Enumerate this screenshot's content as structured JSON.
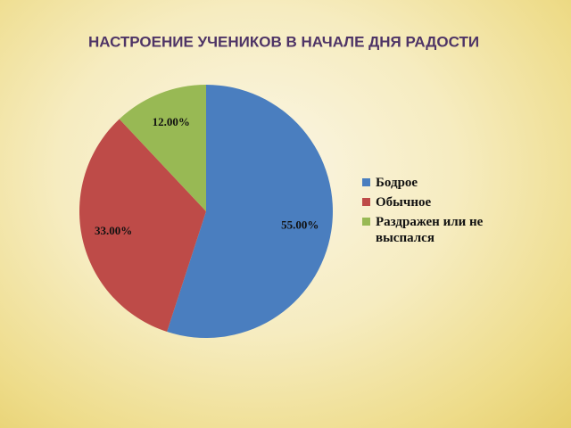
{
  "chart_data": {
    "type": "pie",
    "title": "НАСТРОЕНИЕ УЧЕНИКОВ В НАЧАЛЕ ДНЯ РАДОСТИ",
    "categories": [
      "Бодрое",
      "Обычное",
      "Раздражен или не выспался"
    ],
    "values": [
      55,
      33,
      12
    ],
    "value_labels": [
      "55.00%",
      "33.00%",
      "12.00%"
    ],
    "colors": [
      "#4a7ebf",
      "#be4b48",
      "#98b954"
    ],
    "legend": "right"
  }
}
